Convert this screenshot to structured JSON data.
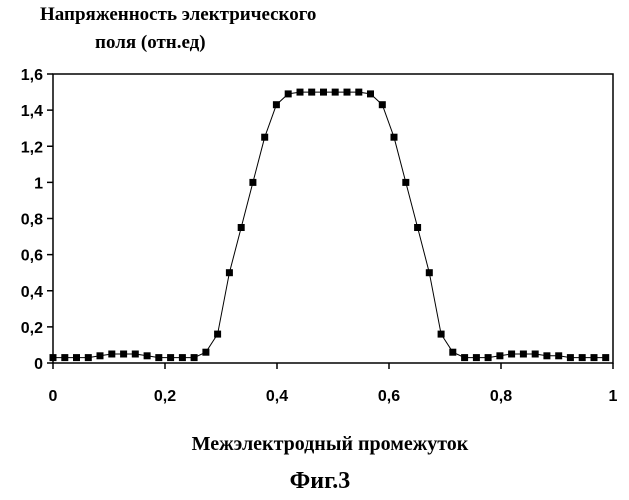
{
  "chart_data": {
    "type": "line",
    "title": "",
    "ylabel_lines": [
      "Напряженность электрического",
      "поля (отн.ед)"
    ],
    "xlabel": "Межэлектродный промежуток",
    "caption": "Фиг.3",
    "xlim": [
      0,
      1
    ],
    "ylim": [
      0,
      1.6
    ],
    "x_ticks": [
      "0",
      "0,2",
      "0,4",
      "0,6",
      "0,8",
      "1"
    ],
    "y_ticks": [
      "0",
      "0,2",
      "0,4",
      "0,6",
      "0,8",
      "1",
      "1,2",
      "1,4",
      "1,6"
    ],
    "grid": false,
    "legend": "none",
    "marker": "square",
    "color": "#000000",
    "x": [
      0.0,
      0.021,
      0.042,
      0.063,
      0.084,
      0.105,
      0.126,
      0.147,
      0.168,
      0.189,
      0.21,
      0.231,
      0.252,
      0.273,
      0.294,
      0.315,
      0.336,
      0.357,
      0.378,
      0.399,
      0.42,
      0.441,
      0.462,
      0.483,
      0.504,
      0.525,
      0.546,
      0.567,
      0.588,
      0.609,
      0.63,
      0.651,
      0.672,
      0.693,
      0.714,
      0.735,
      0.756,
      0.777,
      0.798,
      0.819,
      0.84,
      0.861,
      0.882,
      0.903,
      0.924,
      0.945,
      0.966,
      0.987
    ],
    "y": [
      0.03,
      0.03,
      0.03,
      0.03,
      0.04,
      0.05,
      0.05,
      0.05,
      0.04,
      0.03,
      0.03,
      0.03,
      0.03,
      0.06,
      0.16,
      0.5,
      0.75,
      1.0,
      1.25,
      1.43,
      1.49,
      1.5,
      1.5,
      1.5,
      1.5,
      1.5,
      1.5,
      1.49,
      1.43,
      1.25,
      1.0,
      0.75,
      0.5,
      0.16,
      0.06,
      0.03,
      0.03,
      0.03,
      0.04,
      0.05,
      0.05,
      0.05,
      0.04,
      0.04,
      0.03,
      0.03,
      0.03,
      0.03
    ]
  }
}
